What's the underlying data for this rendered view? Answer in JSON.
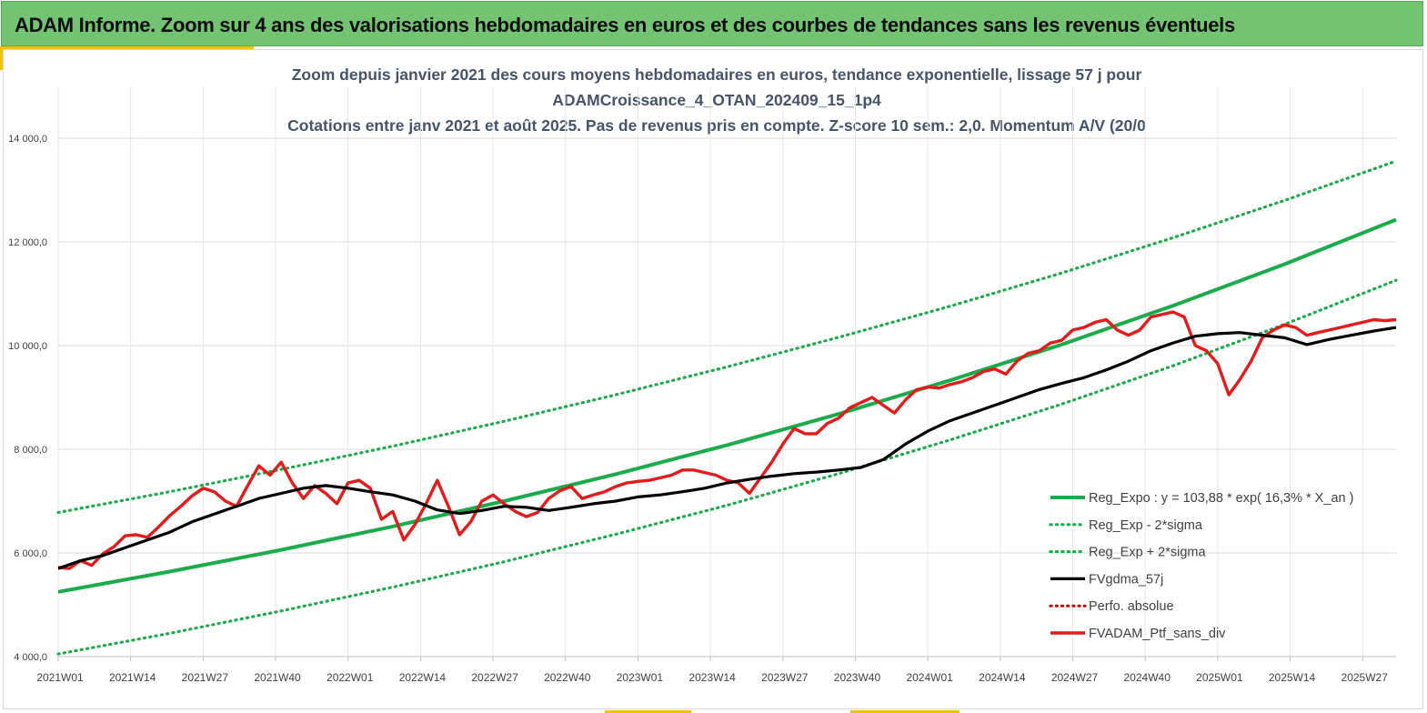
{
  "banner": {
    "title": "ADAM Informe. Zoom sur 4 ans des valorisations hebdomadaires en euros et des courbes de tendances sans les revenus éventuels"
  },
  "colors": {
    "banner_bg": "#72c472",
    "accent": "#f2c200",
    "trend_green": "#1aab4a",
    "smooth_black": "#000000",
    "portfolio_red": "#e31b1b",
    "perf_dotted_red": "#c00000"
  },
  "chart_data": {
    "type": "line",
    "title_lines": [
      "Zoom depuis janvier 2021 des cours moyens hebdomadaires  en euros, tendance exponentielle, lissage 57 j pour",
      "ADAMCroissance_4_OTAN_202409_15_1p4",
      "Cotations entre janv 2021 et août 2025. Pas de revenus pris en compte. Z-score 10 sem.: 2,0. Momentum A/V (20/0"
    ],
    "xlabel": "",
    "ylabel": "",
    "ylim": [
      4000,
      15000
    ],
    "y_ticks": [
      "4 000,0",
      "6 000,0",
      "8 000,0",
      "10 000,0",
      "12 000,0",
      "14 000,0"
    ],
    "y_tick_values": [
      4000,
      6000,
      8000,
      10000,
      12000,
      14000
    ],
    "x_range_weeks": [
      0,
      240
    ],
    "x_ticks": [
      "2021W01",
      "2021W14",
      "2021W27",
      "2021W40",
      "2022W01",
      "2022W14",
      "2022W27",
      "2022W40",
      "2023W01",
      "2023W14",
      "2023W27",
      "2023W40",
      "2024W01",
      "2024W14",
      "2024W27",
      "2024W40",
      "2025W01",
      "2025W14",
      "2025W27"
    ],
    "grid": "horizontal",
    "legend_position": "bottom-right",
    "series": [
      {
        "name": "Reg_Expo : y = 103,88 * exp( 16,3% *  X_an )",
        "style": "solid-green",
        "x": [
          0,
          20,
          40,
          60,
          80,
          100,
          120,
          140,
          160,
          180,
          200,
          220,
          240
        ],
        "values": [
          5250,
          5640,
          6060,
          6510,
          7000,
          7520,
          8080,
          8680,
          9330,
          10020,
          10770,
          11570,
          12430
        ]
      },
      {
        "name": "Reg_Exp - 2*sigma",
        "style": "dotted-green",
        "x": [
          0,
          20,
          40,
          60,
          80,
          100,
          120,
          140,
          160,
          180,
          200,
          220,
          240
        ],
        "values": [
          4050,
          4450,
          4880,
          5340,
          5830,
          6360,
          6920,
          7530,
          8180,
          8870,
          9610,
          10410,
          11260
        ]
      },
      {
        "name": "Reg_Exp + 2*sigma",
        "style": "dotted-green",
        "x": [
          0,
          20,
          40,
          60,
          80,
          100,
          120,
          140,
          160,
          180,
          200,
          220,
          240
        ],
        "values": [
          6780,
          7180,
          7610,
          8060,
          8540,
          9050,
          9590,
          10160,
          10760,
          11400,
          12080,
          12800,
          13560
        ]
      },
      {
        "name": "FVgdma_57j",
        "style": "solid-black",
        "x": [
          0,
          4,
          8,
          12,
          16,
          20,
          24,
          28,
          32,
          36,
          40,
          44,
          48,
          52,
          56,
          60,
          64,
          68,
          72,
          76,
          80,
          84,
          88,
          92,
          96,
          100,
          104,
          108,
          112,
          116,
          120,
          124,
          128,
          132,
          136,
          140,
          144,
          148,
          152,
          156,
          160,
          164,
          168,
          172,
          176,
          180,
          184,
          188,
          192,
          196,
          200,
          204,
          208,
          212,
          216,
          220,
          224,
          228,
          232,
          236,
          240
        ],
        "values": [
          5700,
          5850,
          5950,
          6100,
          6250,
          6400,
          6600,
          6750,
          6900,
          7050,
          7150,
          7250,
          7300,
          7250,
          7180,
          7120,
          7000,
          6830,
          6760,
          6820,
          6900,
          6880,
          6820,
          6880,
          6950,
          7000,
          7080,
          7120,
          7180,
          7250,
          7350,
          7420,
          7480,
          7530,
          7560,
          7600,
          7650,
          7800,
          8100,
          8350,
          8550,
          8700,
          8850,
          9000,
          9150,
          9270,
          9380,
          9530,
          9700,
          9900,
          10050,
          10180,
          10230,
          10250,
          10200,
          10150,
          10020,
          10120,
          10200,
          10280,
          10350
        ]
      },
      {
        "name": "Perfo. absolue",
        "style": "dotted-red",
        "x": [],
        "values": []
      },
      {
        "name": "FVADAM_Ptf_sans_div",
        "style": "solid-red",
        "x": [
          0,
          2,
          4,
          6,
          8,
          10,
          12,
          14,
          16,
          18,
          20,
          22,
          24,
          26,
          28,
          30,
          32,
          34,
          36,
          38,
          40,
          42,
          44,
          46,
          48,
          50,
          52,
          54,
          56,
          58,
          60,
          62,
          64,
          66,
          68,
          70,
          72,
          74,
          76,
          78,
          80,
          82,
          84,
          86,
          88,
          90,
          92,
          94,
          96,
          98,
          100,
          102,
          104,
          106,
          108,
          110,
          112,
          114,
          116,
          118,
          120,
          122,
          124,
          126,
          128,
          130,
          132,
          134,
          136,
          138,
          140,
          142,
          144,
          146,
          148,
          150,
          152,
          154,
          156,
          158,
          160,
          162,
          164,
          166,
          168,
          170,
          172,
          174,
          176,
          178,
          180,
          182,
          184,
          186,
          188,
          190,
          192,
          194,
          196,
          198,
          200,
          202,
          204,
          206,
          208,
          210,
          212,
          214,
          216,
          218,
          220,
          222,
          224,
          226,
          228,
          230,
          232,
          234,
          236,
          238,
          240
        ],
        "values": [
          5720,
          5700,
          5850,
          5760,
          5980,
          6120,
          6330,
          6350,
          6300,
          6500,
          6720,
          6900,
          7100,
          7250,
          7180,
          7000,
          6900,
          7300,
          7680,
          7500,
          7750,
          7350,
          7050,
          7300,
          7150,
          6950,
          7350,
          7400,
          7250,
          6650,
          6800,
          6250,
          6550,
          6950,
          7400,
          6900,
          6350,
          6600,
          7000,
          7120,
          6950,
          6800,
          6700,
          6780,
          7050,
          7200,
          7280,
          7050,
          7120,
          7180,
          7280,
          7350,
          7380,
          7400,
          7450,
          7500,
          7600,
          7600,
          7550,
          7500,
          7400,
          7350,
          7150,
          7450,
          7750,
          8100,
          8400,
          8300,
          8300,
          8500,
          8600,
          8800,
          8900,
          9000,
          8850,
          8700,
          8950,
          9150,
          9200,
          9180,
          9250,
          9300,
          9380,
          9500,
          9550,
          9450,
          9700,
          9850,
          9900,
          10050,
          10100,
          10300,
          10350,
          10450,
          10500,
          10300,
          10200,
          10300,
          10550,
          10600,
          10650,
          10550,
          10000,
          9900,
          9650,
          9050,
          9350,
          9700,
          10150,
          10300,
          10400,
          10350,
          10200,
          10250,
          10300,
          10350,
          10400,
          10450,
          10500,
          10480,
          10500
        ]
      }
    ]
  }
}
